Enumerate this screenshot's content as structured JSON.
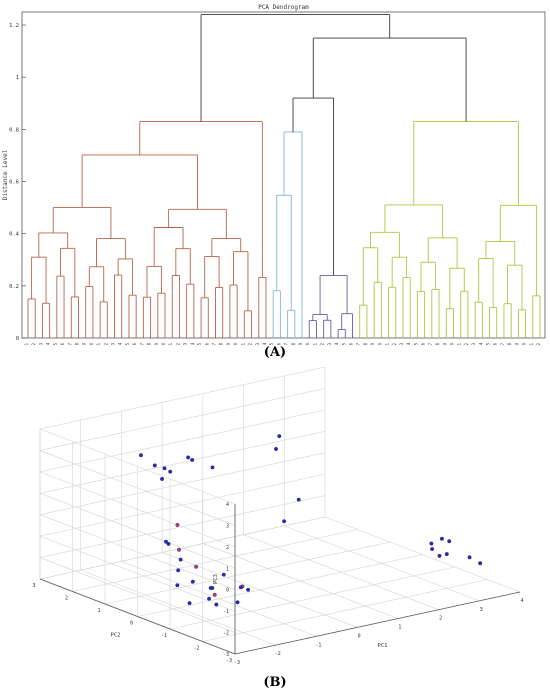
{
  "panel_labels": {
    "a": "(A)",
    "b": "(B)"
  },
  "chart_data": [
    {
      "type": "dendrogram",
      "title": "PCA Dendrogram",
      "ylabel": "Distance Level",
      "xlabel": "",
      "ylim": [
        0,
        1.25
      ],
      "yticks": [
        0,
        0.2,
        0.4,
        0.6,
        0.8,
        1,
        1.2
      ],
      "leaf_labels": [
        "1",
        "2",
        "3",
        "4",
        "5",
        "6",
        "7",
        "8",
        "9",
        "10",
        "11",
        "12",
        "13",
        "14",
        "15",
        "16",
        "17",
        "18",
        "19",
        "20",
        "21",
        "22",
        "23",
        "24",
        "25",
        "26",
        "27",
        "28",
        "29",
        "30",
        "31",
        "32",
        "33",
        "34",
        "35",
        "36",
        "37",
        "38",
        "39",
        "40",
        "41",
        "42",
        "43",
        "44",
        "45",
        "46",
        "47",
        "48",
        "49",
        "50",
        "51",
        "52",
        "53",
        "54",
        "55",
        "56",
        "57",
        "58",
        "59",
        "60",
        "61",
        "62",
        "63",
        "64",
        "65",
        "66",
        "67",
        "68",
        "69",
        "70",
        "71",
        "72"
      ],
      "cluster_colors": {
        "red": "#b5654c",
        "blue": "#7fb6e0",
        "purple": "#6a5aa8",
        "green": "#a9c83f",
        "root": "#3a3a3a"
      },
      "clusters": [
        {
          "color": "red",
          "leaves": [
            1,
            34
          ],
          "height": 0.83
        },
        {
          "color": "blue",
          "leaves": [
            35,
            39
          ],
          "height": 0.79
        },
        {
          "color": "purple",
          "leaves": [
            40,
            46
          ],
          "height": 0.24
        },
        {
          "color": "green",
          "leaves": [
            47,
            72
          ],
          "height": 0.83
        }
      ],
      "top_merges": [
        {
          "height": 0.92,
          "joins": "blue+purple"
        },
        {
          "height": 1.15,
          "joins": "(blue+purple)+green"
        },
        {
          "height": 1.24,
          "joins": "red+rest"
        }
      ]
    },
    {
      "type": "scatter3d",
      "title": "",
      "xlabel": "PC1",
      "ylabel": "PC2",
      "zlabel": "PC3",
      "xlim": [
        -3,
        4
      ],
      "ylim": [
        -3,
        3
      ],
      "zlim": [
        -3,
        4
      ],
      "xticks": [
        -3,
        -2,
        -1,
        0,
        1,
        2,
        3,
        4
      ],
      "yticks": [
        -3,
        -2,
        -1,
        0,
        1,
        2,
        3
      ],
      "zticks": [
        -3,
        -2,
        -1,
        0,
        1,
        2,
        3,
        4
      ],
      "marker_color": "#2b2bb0",
      "marker_color_2": "#b03b6e",
      "points_note_groups": [
        {
          "name": "",
          "x": [
            -2.5,
            -2.3,
            -2.2,
            -2.0,
            -1.8,
            -1.7,
            -1.5,
            -2.4,
            -2.1,
            -1.9,
            -1.6,
            -2.6,
            -2.2,
            -1.8,
            -2.0,
            -1.4,
            -2.3,
            -1.7,
            -2.5,
            -1.9
          ],
          "y": [
            -1.8,
            -1.5,
            -1.2,
            -1.0,
            -0.8,
            -1.6,
            -1.3,
            -0.5,
            -0.2,
            0.1,
            -0.9,
            -1.1,
            -0.7,
            -0.3,
            0.3,
            -1.4,
            0.0,
            0.4,
            -0.6,
            -1.7
          ],
          "z": [
            -1.6,
            -1.4,
            -1.8,
            -1.5,
            -1.7,
            -1.2,
            -1.5,
            -0.8,
            -0.6,
            -0.4,
            -1.1,
            -1.9,
            -1.3,
            -1.0,
            -0.2,
            -1.6,
            0.2,
            0.5,
            -1.4,
            -1.8
          ]
        },
        {
          "name": "",
          "x": [
            -1.2,
            -0.9,
            -0.6,
            -0.3,
            0.0,
            -1.0,
            -0.5,
            -0.2
          ],
          "y": [
            1.5,
            1.8,
            2.0,
            1.7,
            2.2,
            2.4,
            2.6,
            1.2
          ],
          "z": [
            1.8,
            2.0,
            1.6,
            2.2,
            1.9,
            2.3,
            1.5,
            2.1
          ]
        },
        {
          "name": "",
          "x": [
            2.8,
            3.0,
            3.2,
            3.4,
            3.1,
            2.9,
            3.5,
            3.3
          ],
          "y": [
            -1.8,
            -2.0,
            -1.6,
            -2.2,
            -1.4,
            -1.9,
            -2.4,
            -1.7
          ],
          "z": [
            -1.2,
            -1.4,
            -1.0,
            -1.6,
            -1.3,
            -1.5,
            -1.8,
            -1.1
          ]
        },
        {
          "name": "",
          "x": [
            1.2,
            1.6,
            0.8,
            1.0
          ],
          "y": [
            1.0,
            1.4,
            -0.2,
            0.5
          ],
          "z": [
            2.5,
            2.7,
            1.0,
            -0.5
          ]
        }
      ]
    }
  ]
}
